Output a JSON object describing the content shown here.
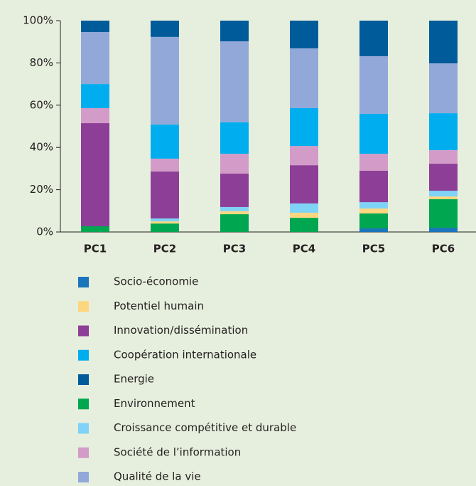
{
  "chart_data": {
    "type": "stacked_bar",
    "categories": [
      "PC1",
      "PC2",
      "PC3",
      "PC4",
      "PC5",
      "PC6"
    ],
    "ylim": [
      0,
      100
    ],
    "yticks": [
      {
        "value": 0,
        "label": "0%"
      },
      {
        "value": 20,
        "label": "20%"
      },
      {
        "value": 40,
        "label": "40%"
      },
      {
        "value": 60,
        "label": "60%"
      },
      {
        "value": 80,
        "label": "80%"
      },
      {
        "value": 100,
        "label": "100%"
      }
    ],
    "grid": false,
    "series": [
      {
        "name": "Socio-économie",
        "color": "#1a75bb",
        "values": [
          0,
          0,
          0,
          0,
          1.7,
          2
        ]
      },
      {
        "name": "Potentiel humain",
        "color": "#fdd77f",
        "values": [
          0,
          1,
          1.4,
          2.4,
          2.3,
          1.3
        ]
      },
      {
        "name": "Innovation/dissémination",
        "color": "#8d3e97",
        "values": [
          48.8,
          22.2,
          15.8,
          18.1,
          14.9,
          12.8
        ]
      },
      {
        "name": "Coopération internationale",
        "color": "#00aeef",
        "values": [
          11.4,
          16.1,
          14.9,
          17.9,
          18.9,
          17.5
        ]
      },
      {
        "name": "Energie",
        "color": "#005b9a",
        "values": [
          5.4,
          7.7,
          9.8,
          13.1,
          16.8,
          20.2
        ]
      },
      {
        "name": "Environnement",
        "color": "#00a650",
        "values": [
          2.7,
          4,
          8.4,
          6.7,
          7.1,
          13.5
        ]
      },
      {
        "name": "Croissance compétitive et durable",
        "color": "#7fd3f7",
        "values": [
          0,
          1.4,
          2,
          4.4,
          3,
          2.7
        ]
      },
      {
        "name": "Société de l’information",
        "color": "#d39bc8",
        "values": [
          7.1,
          6.1,
          9.4,
          9.1,
          8,
          6.4
        ]
      },
      {
        "name": "Qualité de la vie",
        "color": "#92a8d9",
        "values": [
          24.6,
          41.5,
          38.3,
          28.3,
          27.3,
          23.6
        ]
      }
    ]
  }
}
